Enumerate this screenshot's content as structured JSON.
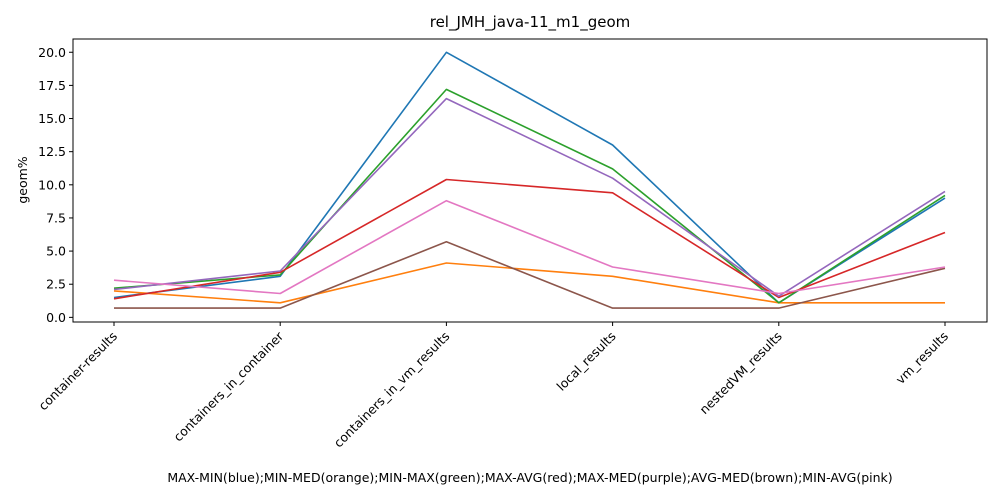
{
  "chart_data": {
    "type": "line",
    "title": "rel_JMH_java-11_m1_geom",
    "xlabel": "MAX-MIN(blue);MIN-MED(orange);MIN-MAX(green);MAX-AVG(red);MAX-MED(purple);AVG-MED(brown);MIN-AVG(pink)",
    "ylabel": "geom%",
    "ylim": [
      -0.35,
      21.0
    ],
    "yticks": [
      0.0,
      2.5,
      5.0,
      7.5,
      10.0,
      12.5,
      15.0,
      17.5,
      20.0
    ],
    "ytick_labels": [
      "0.0",
      "2.5",
      "5.0",
      "7.5",
      "10.0",
      "12.5",
      "15.0",
      "17.5",
      "20.0"
    ],
    "categories": [
      "container-results",
      "containers_in_container",
      "containers_in_vm_results",
      "local_results",
      "nestedVM_results",
      "vm_results"
    ],
    "grid": false,
    "series": [
      {
        "color": "#1f77b4",
        "values": [
          1.5,
          3.1,
          20.0,
          13.0,
          1.1,
          9.0
        ]
      },
      {
        "color": "#ff7f0e",
        "values": [
          2.0,
          1.1,
          4.1,
          3.1,
          1.1,
          1.1
        ]
      },
      {
        "color": "#2ca02c",
        "values": [
          2.2,
          3.2,
          17.2,
          11.2,
          1.1,
          9.2
        ]
      },
      {
        "color": "#d62728",
        "values": [
          1.4,
          3.4,
          10.4,
          9.4,
          1.5,
          6.4
        ]
      },
      {
        "color": "#9467bd",
        "values": [
          2.1,
          3.5,
          16.5,
          10.5,
          1.6,
          9.5
        ]
      },
      {
        "color": "#8c564b",
        "values": [
          0.7,
          0.7,
          5.7,
          0.7,
          0.7,
          3.7
        ]
      },
      {
        "color": "#e377c2",
        "values": [
          2.8,
          1.8,
          8.8,
          3.8,
          1.8,
          3.8
        ]
      }
    ]
  }
}
